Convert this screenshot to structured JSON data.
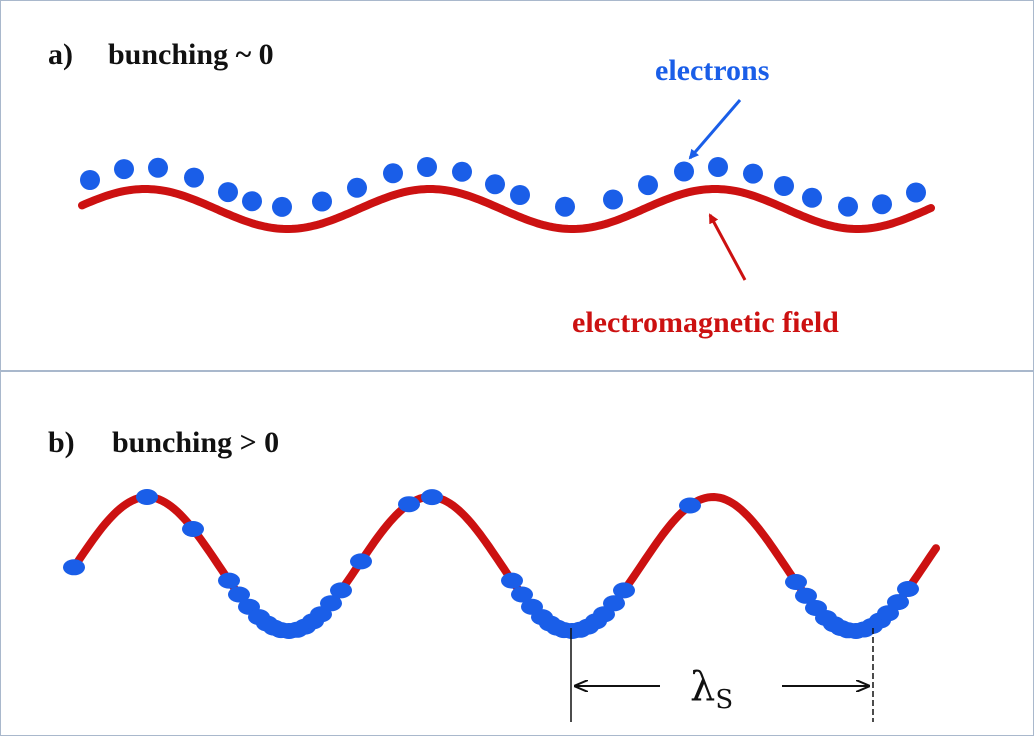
{
  "panel_a": {
    "tag": "a)",
    "title": "bunching ~ 0",
    "electrons_label": "electrons",
    "field_label": "electromagnetic field"
  },
  "panel_b": {
    "tag": "b)",
    "title": "bunching > 0",
    "wavelength_symbol": "λ",
    "wavelength_subscript": "S"
  },
  "colors": {
    "electron": "#1a5ee8",
    "field": "#cc1111",
    "border": "#a9b8cc"
  }
}
